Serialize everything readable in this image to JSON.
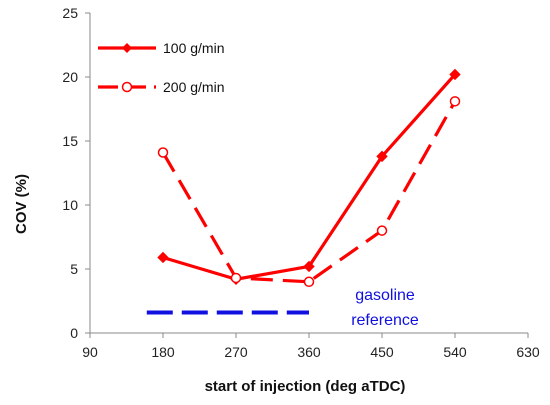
{
  "chart_data": {
    "type": "line",
    "xlabel": "start of injection (deg aTDC)",
    "ylabel": "COV (%)",
    "xlim": [
      90,
      630
    ],
    "ylim": [
      0,
      25
    ],
    "xticks": [
      90,
      180,
      270,
      360,
      450,
      540,
      630
    ],
    "yticks": [
      0,
      5,
      10,
      15,
      20,
      25
    ],
    "grid": false,
    "legend_position": "top-left",
    "series": [
      {
        "name": "100 g/min",
        "color": "#ff0000",
        "line_style": "solid",
        "marker": "filled-diamond",
        "x": [
          180,
          270,
          360,
          450,
          540
        ],
        "y": [
          5.9,
          4.2,
          5.2,
          13.8,
          20.2
        ]
      },
      {
        "name": "200 g/min",
        "color": "#ff0000",
        "line_style": "dashed",
        "marker": "open-circle",
        "x": [
          180,
          270,
          360,
          450,
          540
        ],
        "y": [
          14.1,
          4.3,
          4.0,
          8.0,
          18.1
        ]
      }
    ],
    "reference": {
      "label_line1": "gasoline",
      "label_line2": "reference",
      "color": "#1010e0",
      "line_style": "dashed",
      "x": [
        160,
        360
      ],
      "y": 1.6
    }
  }
}
